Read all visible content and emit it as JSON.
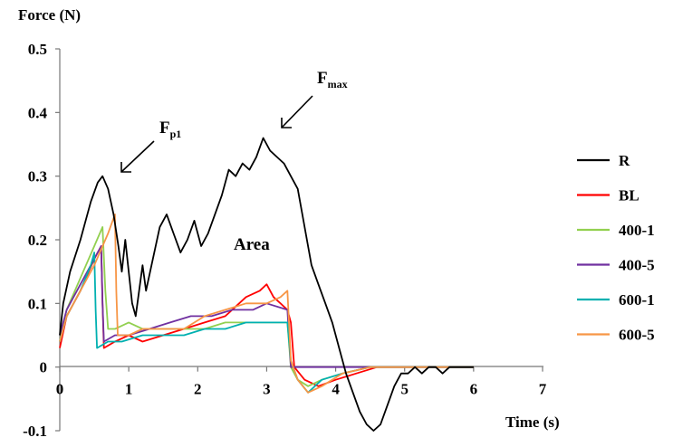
{
  "chart_data": {
    "type": "line",
    "title": "",
    "xlabel": "Time (s)",
    "ylabel": "Force (N)",
    "xlim": [
      0,
      7
    ],
    "ylim": [
      -0.1,
      0.5
    ],
    "xticks": [
      "0",
      "1",
      "2",
      "3",
      "4",
      "5",
      "6",
      "7"
    ],
    "yticks": [
      "-0.1",
      "0",
      "0.1",
      "0.2",
      "0.3",
      "0.4",
      "0.5"
    ],
    "grid": false,
    "legend_position": "right",
    "annotations": {
      "fp1_main": "F",
      "fp1_sub": "p1",
      "fmax_main": "F",
      "fmax_sub": "max",
      "area": "Area"
    },
    "series": [
      {
        "name": "R",
        "color": "#000000",
        "x": [
          0,
          0.05,
          0.15,
          0.3,
          0.45,
          0.55,
          0.62,
          0.7,
          0.78,
          0.85,
          0.9,
          0.95,
          1.0,
          1.05,
          1.1,
          1.15,
          1.2,
          1.25,
          1.35,
          1.45,
          1.55,
          1.65,
          1.75,
          1.85,
          1.95,
          2.05,
          2.15,
          2.25,
          2.35,
          2.45,
          2.55,
          2.65,
          2.75,
          2.85,
          2.95,
          3.05,
          3.15,
          3.25,
          3.35,
          3.45,
          3.55,
          3.65,
          3.75,
          3.85,
          3.95,
          4.05,
          4.15,
          4.25,
          4.35,
          4.45,
          4.55,
          4.65,
          4.75,
          4.85,
          4.95,
          5.05,
          5.15,
          5.25,
          5.35,
          5.45,
          5.55,
          5.65,
          5.75,
          5.85,
          6.0
        ],
        "y": [
          0.05,
          0.1,
          0.15,
          0.2,
          0.26,
          0.29,
          0.3,
          0.28,
          0.24,
          0.19,
          0.15,
          0.2,
          0.15,
          0.1,
          0.08,
          0.12,
          0.16,
          0.12,
          0.17,
          0.22,
          0.24,
          0.21,
          0.18,
          0.2,
          0.23,
          0.19,
          0.21,
          0.24,
          0.27,
          0.31,
          0.3,
          0.32,
          0.31,
          0.33,
          0.36,
          0.34,
          0.33,
          0.32,
          0.3,
          0.28,
          0.22,
          0.16,
          0.13,
          0.1,
          0.07,
          0.03,
          -0.01,
          -0.04,
          -0.07,
          -0.09,
          -0.1,
          -0.09,
          -0.06,
          -0.03,
          -0.01,
          -0.01,
          0.0,
          -0.01,
          0.0,
          0.0,
          -0.01,
          0.0,
          0.0,
          0.0,
          0.0
        ]
      },
      {
        "name": "BL",
        "color": "#ff0000",
        "x": [
          0,
          0.1,
          0.3,
          0.5,
          0.6,
          0.62,
          0.64,
          0.8,
          1.0,
          1.2,
          1.5,
          1.8,
          2.1,
          2.4,
          2.7,
          2.9,
          3.0,
          3.1,
          3.2,
          3.3,
          3.35,
          3.4,
          3.55,
          3.75,
          4.0,
          4.3,
          4.6,
          5.0,
          5.5,
          6.0
        ],
        "y": [
          0.03,
          0.08,
          0.12,
          0.17,
          0.19,
          0.1,
          0.03,
          0.04,
          0.05,
          0.04,
          0.05,
          0.06,
          0.07,
          0.08,
          0.11,
          0.12,
          0.13,
          0.11,
          0.1,
          0.09,
          0.07,
          0.0,
          -0.02,
          -0.03,
          -0.02,
          -0.01,
          0.0,
          0.0,
          0.0,
          0.0
        ]
      },
      {
        "name": "400-1",
        "color": "#92d050",
        "x": [
          0,
          0.1,
          0.3,
          0.5,
          0.62,
          0.66,
          0.7,
          0.8,
          1.0,
          1.2,
          1.5,
          1.8,
          2.1,
          2.4,
          2.7,
          3.0,
          3.3,
          3.35,
          3.45,
          3.6,
          3.8,
          4.1,
          4.5,
          5.0,
          5.5,
          6.0
        ],
        "y": [
          0.04,
          0.09,
          0.14,
          0.19,
          0.22,
          0.12,
          0.06,
          0.06,
          0.07,
          0.06,
          0.06,
          0.06,
          0.06,
          0.07,
          0.07,
          0.07,
          0.07,
          0.0,
          -0.02,
          -0.03,
          -0.02,
          -0.01,
          0.0,
          0.0,
          0.0,
          0.0
        ]
      },
      {
        "name": "400-5",
        "color": "#7030a0",
        "x": [
          0,
          0.1,
          0.3,
          0.5,
          0.6,
          0.62,
          0.64,
          0.8,
          1.0,
          1.3,
          1.6,
          1.9,
          2.2,
          2.5,
          2.8,
          3.0,
          3.3,
          3.35,
          3.45,
          3.6,
          3.8,
          4.1,
          4.5,
          5.0,
          5.5,
          6.0
        ],
        "y": [
          0.05,
          0.09,
          0.13,
          0.17,
          0.19,
          0.1,
          0.04,
          0.05,
          0.05,
          0.06,
          0.07,
          0.08,
          0.08,
          0.09,
          0.09,
          0.1,
          0.09,
          0.0,
          0.0,
          0.0,
          0.0,
          0.0,
          0.0,
          0.0,
          0.0,
          0.0
        ]
      },
      {
        "name": "600-1",
        "color": "#00b0b0",
        "x": [
          0,
          0.1,
          0.3,
          0.45,
          0.5,
          0.52,
          0.54,
          0.7,
          0.9,
          1.2,
          1.5,
          1.8,
          2.1,
          2.4,
          2.7,
          3.0,
          3.3,
          3.35,
          3.45,
          3.6,
          3.8,
          4.1,
          4.5,
          5.0,
          5.5,
          6.0
        ],
        "y": [
          0.04,
          0.08,
          0.12,
          0.16,
          0.18,
          0.09,
          0.03,
          0.04,
          0.04,
          0.05,
          0.05,
          0.05,
          0.06,
          0.06,
          0.07,
          0.07,
          0.07,
          0.01,
          -0.02,
          -0.04,
          -0.02,
          -0.01,
          0.0,
          0.0,
          0.0,
          0.0
        ]
      },
      {
        "name": "600-5",
        "color": "#f79646",
        "x": [
          0,
          0.1,
          0.3,
          0.5,
          0.7,
          0.8,
          0.82,
          0.84,
          1.0,
          1.2,
          1.5,
          1.8,
          2.1,
          2.4,
          2.7,
          3.0,
          3.2,
          3.3,
          3.35,
          3.45,
          3.6,
          3.8,
          4.1,
          4.5,
          5.0,
          5.5,
          6.0
        ],
        "y": [
          0.04,
          0.08,
          0.12,
          0.16,
          0.21,
          0.24,
          0.12,
          0.05,
          0.05,
          0.06,
          0.06,
          0.06,
          0.08,
          0.09,
          0.1,
          0.1,
          0.11,
          0.12,
          0.01,
          -0.02,
          -0.04,
          -0.03,
          -0.01,
          0.0,
          0.0,
          0.0,
          0.0
        ]
      }
    ]
  }
}
